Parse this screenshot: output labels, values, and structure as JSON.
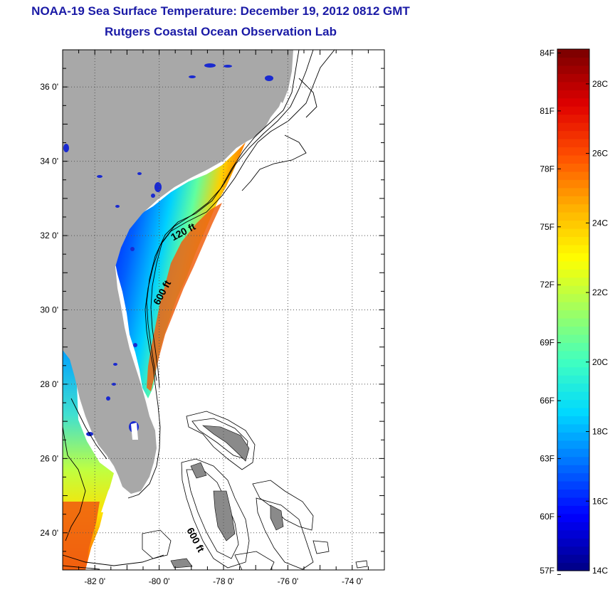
{
  "titles": {
    "line1": "NOAA-19 Sea Surface Temperature:  December 19, 2012 0812 GMT",
    "line2": "Rutgers Coastal Ocean Observation Lab"
  },
  "map": {
    "lon_range": [
      -83.0,
      -73.0
    ],
    "lat_range": [
      23.0,
      37.0
    ],
    "lat_ticks": [
      {
        "value": 36,
        "label": "36 0'"
      },
      {
        "value": 34,
        "label": "34 0'"
      },
      {
        "value": 32,
        "label": "32 0'"
      },
      {
        "value": 30,
        "label": "30 0'"
      },
      {
        "value": 28,
        "label": "28 0'"
      },
      {
        "value": 26,
        "label": "26 0'"
      },
      {
        "value": 24,
        "label": "24 0'"
      }
    ],
    "lon_ticks": [
      {
        "value": -82,
        "label": "-82 0'"
      },
      {
        "value": -80,
        "label": "-80 0'"
      },
      {
        "value": -78,
        "label": "-78 0'"
      },
      {
        "value": -76,
        "label": "-76 0'"
      },
      {
        "value": -74,
        "label": "-74 0'"
      }
    ],
    "contour_labels": [
      "120 ft",
      "600 ft",
      "600 ft"
    ],
    "colors": {
      "land": "#a8a8a8",
      "grid": "#555555",
      "contour": "#000000"
    }
  },
  "colorbar": {
    "min_c": 14,
    "max_c": 29,
    "f_labels": [
      "84F",
      "81F",
      "78F",
      "75F",
      "72F",
      "69F",
      "66F",
      "63F",
      "60F",
      "57F"
    ],
    "f_values": [
      84,
      81,
      78,
      75,
      72,
      69,
      66,
      63,
      60,
      57
    ],
    "c_labels": [
      "28C",
      "26C",
      "24C",
      "22C",
      "20C",
      "18C",
      "16C",
      "14C"
    ],
    "c_values": [
      28,
      26,
      24,
      22,
      20,
      18,
      16,
      14
    ],
    "palette": [
      "#00008c",
      "#0000ff",
      "#0070ff",
      "#00d8ff",
      "#40ffc0",
      "#a0ff60",
      "#ffff00",
      "#ffb000",
      "#ff5000",
      "#e00000",
      "#800000"
    ]
  }
}
